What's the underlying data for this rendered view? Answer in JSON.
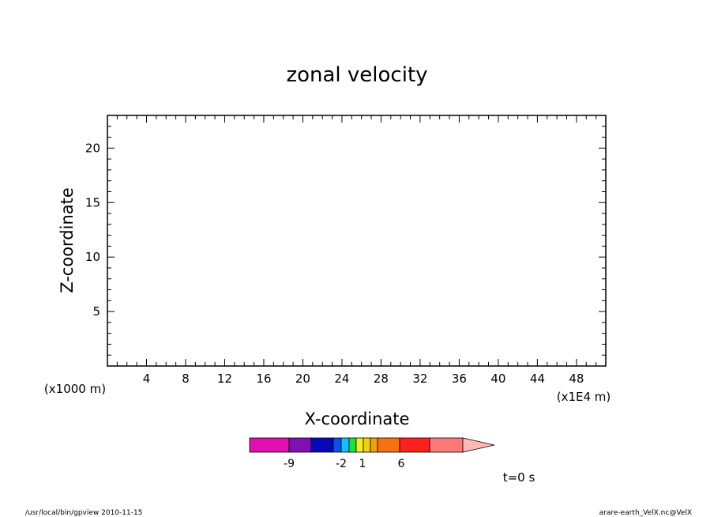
{
  "chart_data": {
    "type": "contour",
    "title": "zonal velocity",
    "xlabel": "X-coordinate",
    "ylabel": "Z-coordinate",
    "x_units_label": "(x1E4 m)",
    "y_units_label": "(x1000 m)",
    "xlim": [
      0,
      51
    ],
    "ylim": [
      0,
      23
    ],
    "x_ticks": [
      4,
      8,
      12,
      16,
      20,
      24,
      28,
      32,
      36,
      40,
      44,
      48
    ],
    "y_ticks": [
      5,
      10,
      15,
      20
    ],
    "x_tick_labels": [
      "4",
      "8",
      "12",
      "16",
      "20",
      "24",
      "28",
      "32",
      "36",
      "40",
      "44",
      "48"
    ],
    "y_tick_labels": [
      "5",
      "10",
      "15",
      "20"
    ],
    "series": [],
    "colorbar": {
      "colors": [
        "#e010b0",
        "#8010b0",
        "#0808b8",
        "#1050e8",
        "#10c0ff",
        "#20e040",
        "#f0f020",
        "#f0d010",
        "#f0a010",
        "#f87010",
        "#ff2020",
        "#ff7878",
        "#ffb8b8"
      ],
      "tick_labels": [
        "-9",
        "-2",
        "1",
        "6"
      ]
    },
    "time_label": "t=0 s"
  },
  "footer": {
    "left": "/usr/local/bin/gpview  2010-11-15",
    "right": "arare-earth_VelX.nc@VelX"
  }
}
